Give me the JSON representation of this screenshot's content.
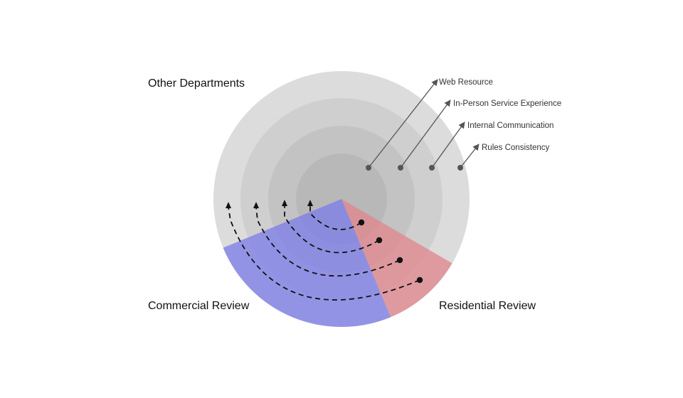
{
  "diagram": {
    "sections": {
      "other": "Other Departments",
      "commercial": "Commercial Review",
      "residential": "Residential Review"
    },
    "rings": [
      {
        "label": "Rules Consistency",
        "fill": "#dcdcdc"
      },
      {
        "label": "Internal Communication",
        "fill": "#cfcfcf"
      },
      {
        "label": "In-Person Service Experience",
        "fill": "#c3c3c3"
      },
      {
        "label": "Web Resource",
        "fill": "#b8b8b8"
      }
    ],
    "colors": {
      "commercial_wedge": "#7f7fe8",
      "residential_wedge": "#e08890",
      "arrows": "#555555",
      "flow_lines": "#111111"
    },
    "icons": {
      "flow_start": "dot-icon",
      "flow_end": "arrowhead-icon"
    }
  }
}
